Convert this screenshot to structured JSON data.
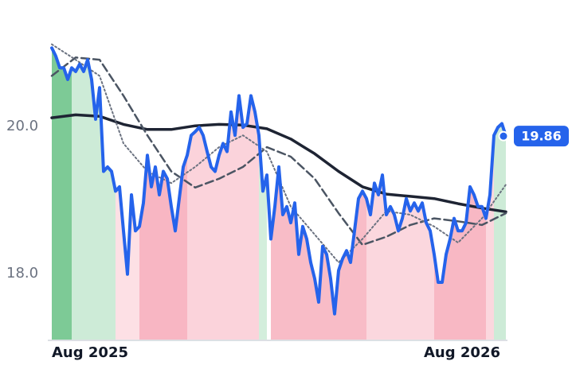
{
  "chart_data": {
    "type": "line",
    "xlim": [
      0,
      114
    ],
    "ylim": [
      17.09,
      21.28
    ],
    "xticks": [
      {
        "value": 0,
        "label": "Aug 2025"
      },
      {
        "value": 103,
        "label": "Aug 2026"
      }
    ],
    "yticks": [
      {
        "value": 18,
        "label": "18.0"
      },
      {
        "value": 20,
        "label": "20.0"
      }
    ],
    "grid": false,
    "bands": [
      {
        "start": 0,
        "end": 5,
        "color": "#7dca96"
      },
      {
        "start": 5,
        "end": 16,
        "color": "#cdebd7"
      },
      {
        "start": 16,
        "end": 22,
        "color": "#fde0e5"
      },
      {
        "start": 22,
        "end": 34,
        "color": "#f8b6c3"
      },
      {
        "start": 34,
        "end": 52,
        "color": "#fbd3db"
      },
      {
        "start": 52,
        "end": 54,
        "color": "#d3eedc"
      },
      {
        "start": 55,
        "end": 79,
        "color": "#f8bcc7"
      },
      {
        "start": 79,
        "end": 96,
        "color": "#fbd7de"
      },
      {
        "start": 96,
        "end": 109,
        "color": "#f8b8c4"
      },
      {
        "start": 109,
        "end": 111,
        "color": "#fbd7de"
      },
      {
        "start": 111,
        "end": 114,
        "color": "#cdebd7"
      }
    ],
    "series": [
      {
        "color": "#2563eb",
        "style": "solid",
        "width": 4,
        "label_last": true,
        "x": [
          0,
          1,
          2,
          3,
          4,
          5,
          6,
          7,
          8,
          9,
          10,
          11,
          12,
          13,
          14,
          15,
          16,
          17,
          18,
          19,
          20,
          21,
          22,
          23,
          24,
          25,
          26,
          27,
          28,
          29,
          30,
          31,
          32,
          33,
          34,
          35,
          36,
          37,
          38,
          39,
          40,
          41,
          42,
          43,
          44,
          45,
          46,
          47,
          48,
          49,
          50,
          51,
          52,
          53,
          54,
          55,
          56,
          57,
          58,
          59,
          60,
          61,
          62,
          63,
          64,
          65,
          66,
          67,
          68,
          69,
          70,
          71,
          72,
          73,
          74,
          75,
          76,
          77,
          78,
          79,
          80,
          81,
          82,
          83,
          84,
          85,
          86,
          87,
          88,
          89,
          90,
          91,
          92,
          93,
          94,
          95,
          96,
          97,
          98,
          99,
          100,
          101,
          102,
          103,
          104,
          105,
          106,
          107,
          108,
          109,
          110,
          111,
          112,
          113,
          114
        ],
        "values": [
          21.06,
          20.95,
          20.79,
          20.79,
          20.63,
          20.79,
          20.74,
          20.84,
          20.74,
          20.9,
          20.63,
          20.09,
          20.52,
          19.38,
          19.44,
          19.38,
          19.11,
          19.17,
          18.57,
          17.98,
          19.06,
          18.57,
          18.63,
          18.95,
          19.6,
          19.17,
          19.44,
          19.06,
          19.38,
          19.28,
          18.9,
          18.57,
          19.01,
          19.44,
          19.6,
          19.87,
          19.92,
          19.98,
          19.87,
          19.65,
          19.44,
          19.38,
          19.6,
          19.76,
          19.65,
          20.19,
          19.87,
          20.41,
          19.98,
          20.03,
          20.41,
          20.19,
          19.87,
          19.11,
          19.33,
          18.46,
          18.9,
          19.44,
          18.79,
          18.9,
          18.68,
          18.95,
          18.25,
          18.63,
          18.46,
          18.14,
          17.92,
          17.6,
          18.36,
          18.25,
          17.92,
          17.44,
          18.03,
          18.19,
          18.3,
          18.14,
          18.57,
          19.01,
          19.11,
          19.01,
          18.79,
          19.22,
          19.06,
          19.33,
          18.79,
          18.9,
          18.79,
          18.57,
          18.74,
          19.01,
          18.84,
          18.95,
          18.84,
          18.95,
          18.68,
          18.57,
          18.25,
          17.87,
          17.87,
          18.25,
          18.46,
          18.74,
          18.57,
          18.57,
          18.68,
          19.17,
          19.06,
          18.9,
          18.9,
          18.74,
          19.06,
          19.87,
          19.98,
          20.03,
          19.86
        ]
      },
      {
        "color": "#1e2433",
        "style": "solid",
        "width": 3.5,
        "x": [
          0,
          6,
          12,
          18,
          24,
          30,
          36,
          42,
          48,
          54,
          60,
          66,
          72,
          78,
          84,
          90,
          96,
          102,
          108,
          114
        ],
        "values": [
          20.11,
          20.15,
          20.13,
          20.02,
          19.95,
          19.95,
          20.0,
          20.02,
          20.01,
          19.96,
          19.82,
          19.62,
          19.38,
          19.17,
          19.07,
          19.04,
          19.01,
          18.94,
          18.88,
          18.83
        ]
      },
      {
        "color": "#4b5563",
        "style": "dashed",
        "width": 2.5,
        "x": [
          0,
          6,
          12,
          18,
          24,
          30,
          36,
          42,
          48,
          54,
          60,
          66,
          72,
          78,
          84,
          90,
          96,
          102,
          108,
          114
        ],
        "values": [
          20.68,
          20.93,
          20.9,
          20.41,
          19.87,
          19.38,
          19.16,
          19.28,
          19.44,
          19.71,
          19.58,
          19.28,
          18.81,
          18.38,
          18.49,
          18.65,
          18.74,
          18.7,
          18.65,
          18.81
        ]
      },
      {
        "color": "#6b7280",
        "style": "dotted",
        "width": 2,
        "x": [
          0,
          6,
          12,
          18,
          24,
          30,
          36,
          42,
          48,
          54,
          60,
          66,
          72,
          78,
          84,
          90,
          96,
          102,
          108,
          114
        ],
        "values": [
          21.11,
          20.9,
          20.68,
          19.76,
          19.38,
          19.22,
          19.44,
          19.71,
          19.87,
          19.65,
          18.9,
          18.52,
          18.14,
          18.46,
          18.84,
          18.79,
          18.63,
          18.41,
          18.74,
          19.2
        ]
      }
    ]
  }
}
